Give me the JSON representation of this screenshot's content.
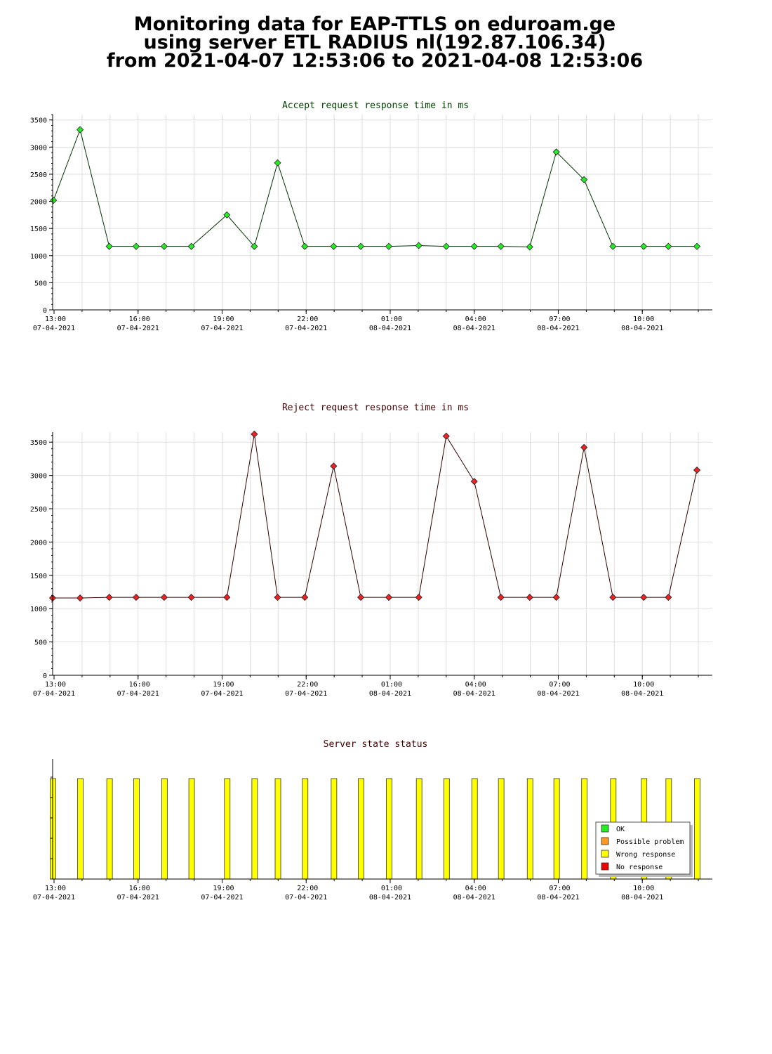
{
  "page": {
    "title_lines": [
      "Monitoring data for EAP-TTLS on eduroam.ge",
      "using server ETL RADIUS nl(192.87.106.34)",
      "from 2021-04-07 12:53:06 to 2021-04-08 12:53:06"
    ]
  },
  "chart_data": [
    {
      "type": "line",
      "title": "Accept request response time in ms",
      "title_color": "#004400",
      "line_color": "#003300",
      "marker_color": "#22ee22",
      "xlabel": "",
      "ylabel": "",
      "x_ticks": [
        {
          "hour": 13,
          "time": "13:00",
          "date": "07-04-2021"
        },
        {
          "hour": 16,
          "time": "16:00",
          "date": "07-04-2021"
        },
        {
          "hour": 19,
          "time": "19:00",
          "date": "07-04-2021"
        },
        {
          "hour": 22,
          "time": "22:00",
          "date": "07-04-2021"
        },
        {
          "hour": 25,
          "time": "01:00",
          "date": "08-04-2021"
        },
        {
          "hour": 28,
          "time": "04:00",
          "date": "08-04-2021"
        },
        {
          "hour": 31,
          "time": "07:00",
          "date": "08-04-2021"
        },
        {
          "hour": 34,
          "time": "10:00",
          "date": "08-04-2021"
        }
      ],
      "yticks": [
        0,
        500,
        1000,
        1500,
        2000,
        2500,
        3000,
        3500
      ],
      "ylim": [
        0,
        3600
      ],
      "grid": true,
      "x": [
        12.98,
        13.93,
        14.97,
        15.93,
        16.93,
        17.9,
        19.17,
        20.15,
        20.98,
        21.95,
        22.98,
        23.95,
        24.95,
        26.02,
        27.0,
        28.0,
        28.95,
        29.98,
        30.93,
        31.92,
        32.95,
        34.05,
        34.93,
        35.95
      ],
      "values": [
        2020,
        3320,
        1170,
        1170,
        1170,
        1170,
        1750,
        1170,
        2710,
        1170,
        1170,
        1170,
        1170,
        1185,
        1170,
        1170,
        1170,
        1160,
        2910,
        2400,
        1170,
        1170,
        1170,
        1170
      ]
    },
    {
      "type": "line",
      "title": "Reject request response time in ms",
      "title_color": "#440000",
      "line_color": "#330000",
      "marker_color": "#ee2222",
      "xlabel": "",
      "ylabel": "",
      "x_ticks": [
        {
          "hour": 13,
          "time": "13:00",
          "date": "07-04-2021"
        },
        {
          "hour": 16,
          "time": "16:00",
          "date": "07-04-2021"
        },
        {
          "hour": 19,
          "time": "19:00",
          "date": "07-04-2021"
        },
        {
          "hour": 22,
          "time": "22:00",
          "date": "07-04-2021"
        },
        {
          "hour": 25,
          "time": "01:00",
          "date": "08-04-2021"
        },
        {
          "hour": 28,
          "time": "04:00",
          "date": "08-04-2021"
        },
        {
          "hour": 31,
          "time": "07:00",
          "date": "08-04-2021"
        },
        {
          "hour": 34,
          "time": "10:00",
          "date": "08-04-2021"
        }
      ],
      "yticks": [
        0,
        500,
        1000,
        1500,
        2000,
        2500,
        3000,
        3500
      ],
      "ylim": [
        0,
        3650
      ],
      "grid": true,
      "x": [
        12.95,
        13.93,
        14.97,
        15.93,
        16.93,
        17.9,
        19.17,
        20.15,
        20.98,
        21.95,
        22.98,
        23.95,
        24.95,
        26.02,
        27.0,
        28.0,
        28.95,
        29.98,
        30.93,
        31.92,
        32.95,
        34.05,
        34.93,
        35.95
      ],
      "values": [
        1160,
        1160,
        1170,
        1170,
        1170,
        1170,
        1170,
        3620,
        1170,
        1170,
        3140,
        1170,
        1170,
        1170,
        3590,
        2910,
        1170,
        1170,
        1170,
        3420,
        1170,
        1170,
        1170,
        3080
      ]
    },
    {
      "type": "bar",
      "title": "Server state status",
      "title_color": "#440000",
      "x_ticks": [
        {
          "hour": 13,
          "time": "13:00",
          "date": "07-04-2021"
        },
        {
          "hour": 16,
          "time": "16:00",
          "date": "07-04-2021"
        },
        {
          "hour": 19,
          "time": "19:00",
          "date": "07-04-2021"
        },
        {
          "hour": 22,
          "time": "22:00",
          "date": "07-04-2021"
        },
        {
          "hour": 25,
          "time": "01:00",
          "date": "08-04-2021"
        },
        {
          "hour": 28,
          "time": "04:00",
          "date": "08-04-2021"
        },
        {
          "hour": 31,
          "time": "07:00",
          "date": "08-04-2021"
        },
        {
          "hour": 34,
          "time": "10:00",
          "date": "08-04-2021"
        }
      ],
      "x": [
        12.95,
        13.93,
        14.97,
        15.93,
        16.93,
        17.9,
        19.17,
        20.15,
        20.98,
        21.95,
        22.98,
        23.95,
        24.95,
        26.02,
        27.0,
        28.0,
        28.95,
        29.98,
        30.93,
        31.92,
        32.95,
        34.05,
        34.93,
        35.95
      ],
      "states": [
        "Wrong response",
        "Wrong response",
        "Wrong response",
        "Wrong response",
        "Wrong response",
        "Wrong response",
        "Wrong response",
        "Wrong response",
        "Wrong response",
        "Wrong response",
        "Wrong response",
        "Wrong response",
        "Wrong response",
        "Wrong response",
        "Wrong response",
        "Wrong response",
        "Wrong response",
        "Wrong response",
        "Wrong response",
        "Wrong response",
        "Wrong response",
        "Wrong response",
        "Wrong response",
        "Wrong response"
      ],
      "legend_position": "bottom-right",
      "legend": [
        {
          "label": "OK",
          "color": "#22ee22"
        },
        {
          "label": "Possible problem",
          "color": "#ff9922"
        },
        {
          "label": "Wrong response",
          "color": "#ffff00"
        },
        {
          "label": "No response",
          "color": "#ee0000"
        }
      ]
    }
  ]
}
